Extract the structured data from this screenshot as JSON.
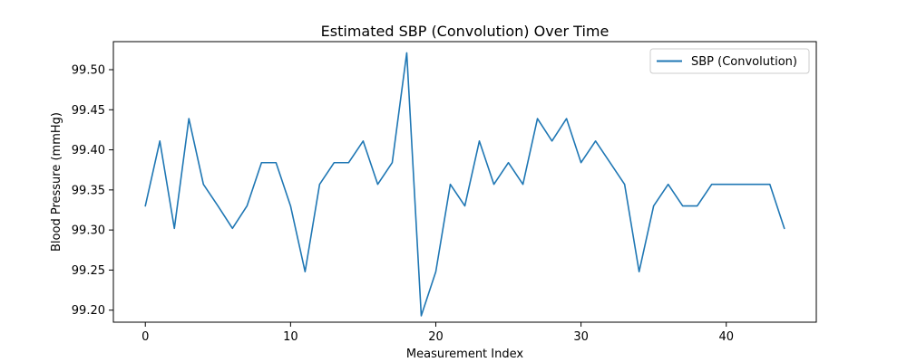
{
  "chart_data": {
    "type": "line",
    "title": "Estimated SBP (Convolution) Over Time",
    "xlabel": "Measurement Index",
    "ylabel": "Blood Pressure (mmHg)",
    "xlim": [
      -2.2,
      46.2
    ],
    "ylim": [
      99.185,
      99.535
    ],
    "x_ticks": [
      0,
      10,
      20,
      30,
      40
    ],
    "y_ticks": [
      99.2,
      99.25,
      99.3,
      99.35,
      99.4,
      99.45,
      99.5
    ],
    "y_tick_labels": [
      "99.20",
      "99.25",
      "99.30",
      "99.35",
      "99.40",
      "99.45",
      "99.50"
    ],
    "grid": false,
    "legend_position": "top-right",
    "colors": {
      "series": "#1f77b4",
      "axes": "#000000"
    },
    "series": [
      {
        "name": "SBP (Convolution)",
        "x": [
          0,
          1,
          2,
          3,
          4,
          5,
          6,
          7,
          8,
          9,
          10,
          11,
          12,
          13,
          14,
          15,
          16,
          17,
          18,
          19,
          20,
          21,
          22,
          23,
          24,
          25,
          26,
          27,
          28,
          29,
          30,
          31,
          32,
          33,
          34,
          35,
          36,
          37,
          38,
          39,
          40,
          41,
          42,
          43,
          44
        ],
        "values": [
          99.33,
          99.411,
          99.302,
          99.439,
          99.357,
          99.33,
          99.302,
          99.33,
          99.384,
          99.384,
          99.33,
          99.248,
          99.357,
          99.384,
          99.384,
          99.411,
          99.357,
          99.384,
          99.521,
          99.193,
          99.248,
          99.357,
          99.33,
          99.411,
          99.357,
          99.384,
          99.357,
          99.439,
          99.411,
          99.439,
          99.384,
          99.411,
          99.384,
          99.357,
          99.248,
          99.33,
          99.357,
          99.33,
          99.33,
          99.357,
          99.357,
          99.357,
          99.357,
          99.357,
          99.302
        ]
      }
    ]
  }
}
